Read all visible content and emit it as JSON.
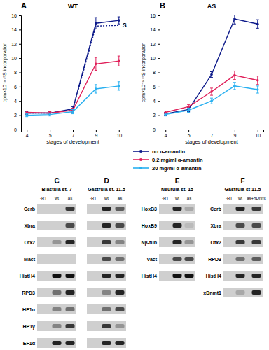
{
  "chart_data": [
    {
      "type": "line",
      "title": "A",
      "subtitle": "WT",
      "x_label": "stages of development",
      "y_label": "cpm×10⁻³ ³⁵S incorporation",
      "categories": [
        "4",
        "5",
        "7",
        "9",
        "10"
      ],
      "ylim": [
        0,
        16
      ],
      "yticks": [
        0,
        2,
        4,
        6,
        8,
        10,
        12,
        14,
        16
      ],
      "legend": "bottom",
      "marker": "circle",
      "series": [
        {
          "name": "no α-amantin",
          "color": "#0d1a8a",
          "line_style": "solid",
          "values": [
            2.3,
            2.3,
            2.9,
            14.9,
            15.3
          ],
          "errors": [
            0.2,
            0.2,
            0.3,
            0.8,
            0.5
          ]
        },
        {
          "color": "#0d1a8a",
          "line_style": "dotted",
          "values": [
            2.3,
            2.3,
            2.8,
            14.5,
            14.6
          ]
        },
        {
          "name": "0.2 mg/ml α-amantin",
          "color": "#e0205a",
          "line_style": "solid",
          "values": [
            2.4,
            2.3,
            2.7,
            9.2,
            9.6
          ],
          "errors": [
            0.2,
            0.2,
            0.3,
            0.9,
            0.7
          ]
        },
        {
          "name": "20 mg/ml α-amantin",
          "color": "#29b0f0",
          "line_style": "solid",
          "values": [
            2.0,
            2.1,
            2.5,
            5.7,
            6.1
          ],
          "errors": [
            0.2,
            0.2,
            0.3,
            0.6,
            0.6
          ]
        }
      ],
      "annotations": [
        {
          "text": "S",
          "x": "10",
          "y": 14.6
        }
      ]
    },
    {
      "type": "line",
      "title": "B",
      "subtitle": "AS",
      "x_label": "stages of development",
      "y_label": "cpm×10⁻³ ³⁵S incorporation",
      "categories": [
        "4",
        "5",
        "7",
        "9",
        "10"
      ],
      "ylim": [
        0,
        16
      ],
      "yticks": [
        0,
        2,
        4,
        6,
        8,
        10,
        12,
        14,
        16
      ],
      "marker": "circle",
      "series": [
        {
          "color": "#0d1a8a",
          "line_style": "solid",
          "values": [
            2.2,
            2.8,
            7.7,
            15.5,
            14.8
          ],
          "errors": [
            0.2,
            0.3,
            0.4,
            0.7,
            0.6
          ]
        },
        {
          "color": "#e0205a",
          "line_style": "solid",
          "values": [
            2.4,
            3.2,
            5.3,
            7.6,
            6.9
          ],
          "errors": [
            0.2,
            0.3,
            0.5,
            0.6,
            0.6
          ]
        },
        {
          "color": "#29b0f0",
          "line_style": "solid",
          "values": [
            2.1,
            2.7,
            4.0,
            6.1,
            5.6
          ],
          "errors": [
            0.2,
            0.3,
            0.4,
            0.5,
            0.5
          ]
        }
      ]
    }
  ],
  "gels": [
    {
      "label": "C",
      "title": "Blastula st. 7",
      "lanes": [
        "-RT",
        "wt",
        "as"
      ],
      "rows": [
        "Cerb",
        "Xbra",
        "Otx2",
        "Mact",
        "HistH4",
        "RPD3",
        "HP1α",
        "HP1γ",
        "EF1α"
      ],
      "bands": [
        [
          0,
          0,
          0.8
        ],
        [
          0,
          0,
          0.7
        ],
        [
          0,
          0.3,
          0.9
        ],
        [
          0,
          0,
          0
        ],
        [
          0,
          1,
          1
        ],
        [
          0,
          0.5,
          0.9
        ],
        [
          0,
          0.4,
          0.5
        ],
        [
          0,
          0.4,
          0.8
        ],
        [
          0,
          0.9,
          0.9
        ]
      ]
    },
    {
      "label": "D",
      "title": "Gastrula st. 11.5",
      "lanes": [
        "-RT",
        "wt",
        "as"
      ],
      "bands": [
        [
          0,
          0.9,
          0.6
        ],
        [
          0,
          0.9,
          0.7
        ],
        [
          0,
          0.8,
          0.4
        ],
        [
          0,
          0.7,
          0.5
        ],
        [
          0,
          0.9,
          0.9
        ],
        [
          0,
          0.4,
          0.9
        ],
        [
          0,
          0.5,
          0.7
        ],
        [
          0,
          0.8,
          0.3
        ],
        [
          0,
          0.9,
          0.9
        ]
      ]
    },
    {
      "label": "E",
      "title": "Neurula st. 15",
      "lanes": [
        "-RT",
        "wt",
        "as"
      ],
      "rows": [
        "HoxB3",
        "HoxB9",
        "Nβ-tub",
        "Vact",
        "HistH4"
      ],
      "bands": [
        [
          0,
          0.9,
          0.2
        ],
        [
          0,
          0.9,
          0.1
        ],
        [
          0,
          0.9,
          0.3
        ],
        [
          0,
          0.7,
          0.7
        ],
        [
          0,
          1,
          1
        ]
      ]
    },
    {
      "label": "F",
      "title": "Gastrula st 11.5",
      "lanes": [
        "-RT",
        "wt",
        "as+hDnmt"
      ],
      "rows": [
        "Cerb",
        "Xbra",
        "Otx2",
        "RPD3",
        "HistH4",
        "xDnmt1"
      ],
      "bands": [
        [
          0,
          0.9,
          0.8
        ],
        [
          0,
          0.7,
          0.7
        ],
        [
          0,
          0.8,
          0.8
        ],
        [
          0,
          0.5,
          0.6
        ],
        [
          0,
          0.9,
          0.9
        ],
        [
          0,
          0.2,
          0.9
        ]
      ]
    }
  ]
}
